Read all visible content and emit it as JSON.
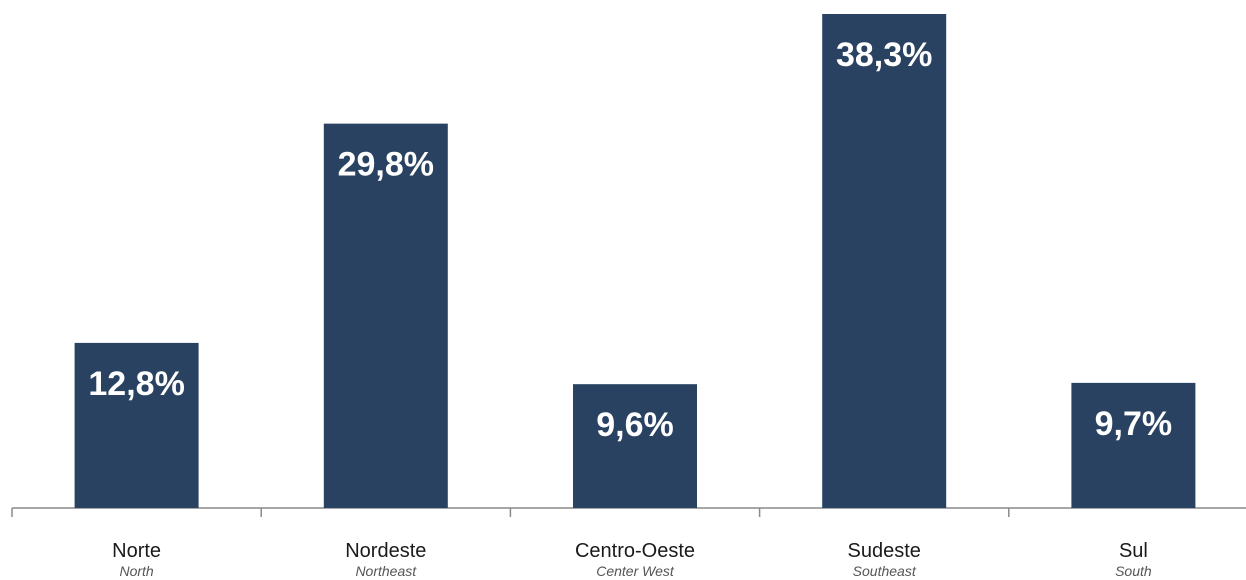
{
  "chart_data": {
    "type": "bar",
    "categories": [
      "Norte",
      "Nordeste",
      "Centro-Oeste",
      "Sudeste",
      "Sul"
    ],
    "categories_secondary": [
      "North",
      "Northeast",
      "Center West",
      "Southeast",
      "South"
    ],
    "values": [
      12.8,
      29.8,
      9.6,
      38.3,
      9.7
    ],
    "value_labels": [
      "12,8%",
      "29,8%",
      "9,6%",
      "38,3%",
      "9,7%"
    ],
    "ylim": [
      0,
      38.3
    ],
    "grid": false,
    "colors": {
      "bar": "#2a4261",
      "value_text": "#ffffff"
    }
  }
}
